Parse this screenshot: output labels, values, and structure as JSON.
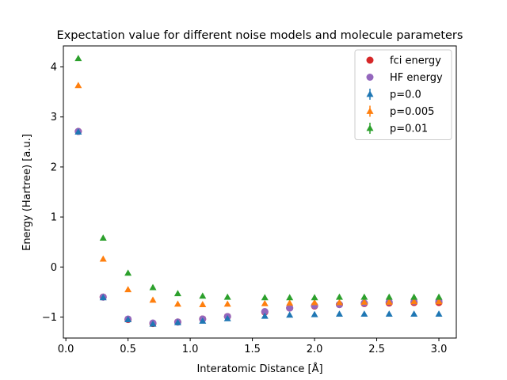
{
  "chart_data": {
    "type": "scatter",
    "title": "Expectation value for different noise models and molecule parameters",
    "xlabel": "Interatomic Distance [Å]",
    "ylabel": "Energy (Hartree) [a.u.]",
    "xlim": [
      -0.02,
      3.14
    ],
    "ylim": [
      -1.42,
      4.42
    ],
    "xticks": [
      "0.0",
      "0.5",
      "1.0",
      "1.5",
      "2.0",
      "2.5",
      "3.0"
    ],
    "yticks": [
      "−1",
      "0",
      "1",
      "2",
      "3",
      "4"
    ],
    "legend_position": "top-right",
    "x": [
      0.1,
      0.3,
      0.5,
      0.7,
      0.9,
      1.1,
      1.3,
      1.6,
      1.8,
      2.0,
      2.2,
      2.4,
      2.6,
      2.8,
      3.0
    ],
    "series": [
      {
        "name": "fci energy",
        "marker": "circle",
        "color": "#d62728",
        "values": [
          2.71,
          -0.6,
          -1.05,
          -1.13,
          -1.1,
          -1.04,
          -0.99,
          -0.9,
          -0.82,
          -0.78,
          -0.75,
          -0.73,
          -0.72,
          -0.71,
          -0.71
        ]
      },
      {
        "name": "HF energy",
        "marker": "circle",
        "color": "#9467bd",
        "values": [
          2.71,
          -0.6,
          -1.04,
          -1.12,
          -1.1,
          -1.04,
          -0.99,
          -0.89,
          -0.82,
          -0.77,
          -0.75,
          -0.72,
          -0.7,
          -0.69,
          -0.68
        ]
      },
      {
        "name": "p=0.0",
        "marker": "triangle",
        "color": "#1f77b4",
        "values": [
          2.7,
          -0.61,
          -1.05,
          -1.14,
          -1.11,
          -1.08,
          -1.03,
          -0.98,
          -0.96,
          -0.95,
          -0.94,
          -0.94,
          -0.94,
          -0.94,
          -0.94
        ]
      },
      {
        "name": "p=0.005",
        "marker": "triangle",
        "color": "#ff7f0e",
        "values": [
          3.63,
          0.16,
          -0.45,
          -0.66,
          -0.74,
          -0.75,
          -0.74,
          -0.73,
          -0.72,
          -0.71,
          -0.71,
          -0.7,
          -0.7,
          -0.69,
          -0.69
        ]
      },
      {
        "name": "p=0.01",
        "marker": "triangle",
        "color": "#2ca02c",
        "values": [
          4.17,
          0.58,
          -0.12,
          -0.41,
          -0.53,
          -0.58,
          -0.6,
          -0.61,
          -0.61,
          -0.61,
          -0.6,
          -0.6,
          -0.6,
          -0.6,
          -0.6
        ]
      }
    ]
  }
}
